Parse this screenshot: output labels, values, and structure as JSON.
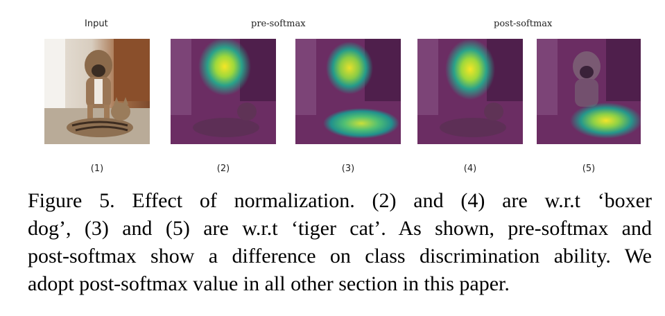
{
  "figure": {
    "headers": {
      "input": "Input",
      "pre_softmax": "pre-softmax",
      "post_softmax": "post-softmax"
    },
    "panels": [
      {
        "label": "(1)",
        "image": "photo of boxer dog and tiger cat"
      },
      {
        "label": "(2)",
        "image": "heatmap overlay pre-softmax boxer dog"
      },
      {
        "label": "(3)",
        "image": "heatmap overlay pre-softmax tiger cat"
      },
      {
        "label": "(4)",
        "image": "heatmap overlay post-softmax boxer dog"
      },
      {
        "label": "(5)",
        "image": "heatmap overlay post-softmax tiger cat"
      }
    ],
    "caption_lines": [
      "Figure 5. Effect of normalization.  (2) and (4) are w.r.t ‘boxer",
      "dog’, (3) and (5) are w.r.t ‘tiger cat’.  As shown, pre-softmax and",
      "post-softmax show a difference on class discrimination ability. We",
      "adopt post-softmax value in all other section in this paper."
    ]
  }
}
